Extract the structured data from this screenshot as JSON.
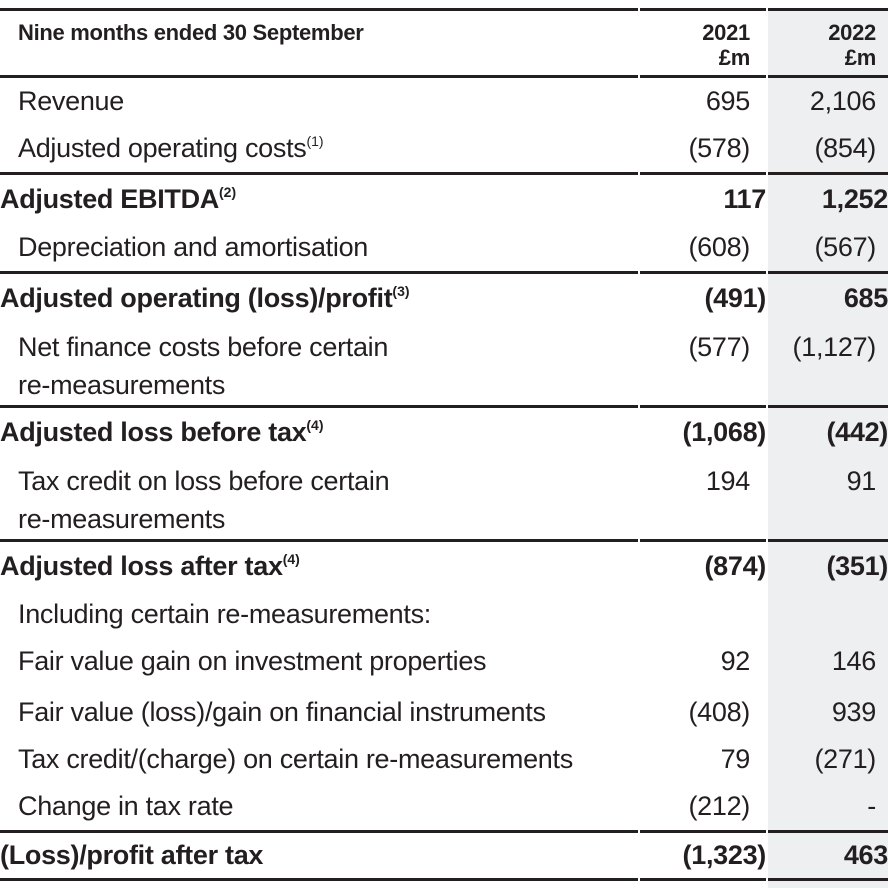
{
  "header": {
    "title": "Nine months ended 30 September",
    "columns": [
      {
        "year": "2021",
        "unit": "£m"
      },
      {
        "year": "2022",
        "unit": "£m"
      }
    ]
  },
  "rows": [
    {
      "label": "Revenue",
      "sup": "",
      "label2": "",
      "v2021": "695",
      "v2022": "2,106",
      "bold": false,
      "rule": false,
      "tall": false
    },
    {
      "label": "Adjusted operating costs",
      "sup": "(1)",
      "label2": "",
      "v2021": "(578)",
      "v2022": "(854)",
      "bold": false,
      "rule": true,
      "tall": false
    },
    {
      "label": "Adjusted EBITDA",
      "sup": "(2)",
      "label2": "",
      "v2021": "117",
      "v2022": "1,252",
      "bold": true,
      "rule": false,
      "tall": false
    },
    {
      "label": "Depreciation and amortisation",
      "sup": "",
      "label2": "",
      "v2021": "(608)",
      "v2022": "(567)",
      "bold": false,
      "rule": true,
      "tall": false
    },
    {
      "label": "Adjusted operating (loss)/profit",
      "sup": "(3)",
      "label2": "",
      "v2021": "(491)",
      "v2022": "685",
      "bold": true,
      "rule": false,
      "tall": false
    },
    {
      "label": "Net finance costs before certain",
      "sup": "",
      "label2": "re-measurements",
      "v2021": "(577)",
      "v2022": "(1,127)",
      "bold": false,
      "rule": true,
      "tall": false
    },
    {
      "label": "Adjusted loss before tax",
      "sup": "(4)",
      "label2": "",
      "v2021": "(1,068)",
      "v2022": "(442)",
      "bold": true,
      "rule": false,
      "tall": false
    },
    {
      "label": "Tax credit on loss before certain",
      "sup": "",
      "label2": "re-measurements",
      "v2021": "194",
      "v2022": "91",
      "bold": false,
      "rule": true,
      "tall": false
    },
    {
      "label": "Adjusted loss after tax",
      "sup": "(4)",
      "label2": "",
      "v2021": "(874)",
      "v2022": "(351)",
      "bold": true,
      "rule": false,
      "tall": false
    },
    {
      "label": "Including certain re-measurements:",
      "sup": "",
      "label2": "",
      "v2021": "",
      "v2022": "",
      "bold": false,
      "rule": false,
      "tall": false
    },
    {
      "label": "Fair value gain on investment properties",
      "sup": "",
      "label2": "",
      "v2021": "92",
      "v2022": "146",
      "bold": false,
      "rule": false,
      "tall": false
    },
    {
      "label": "Fair value (loss)/gain on financial instruments",
      "sup": "",
      "label2": "",
      "v2021": "(408)",
      "v2022": "939",
      "bold": false,
      "rule": false,
      "tall": true
    },
    {
      "label": "Tax credit/(charge) on certain re-measurements",
      "sup": "",
      "label2": "",
      "v2021": "79",
      "v2022": "(271)",
      "bold": false,
      "rule": false,
      "tall": false
    },
    {
      "label": "Change in tax rate",
      "sup": "",
      "label2": "",
      "v2021": "(212)",
      "v2022": "-",
      "bold": false,
      "rule": true,
      "tall": false
    },
    {
      "label": "(Loss)/profit after tax",
      "sup": "",
      "label2": "",
      "v2021": "(1,323)",
      "v2022": "463",
      "bold": true,
      "rule": true,
      "tall": false
    }
  ],
  "colors": {
    "table_text": "#231f20",
    "rule_color": "#231f20",
    "highlight_column_bg": "#edeff0"
  }
}
